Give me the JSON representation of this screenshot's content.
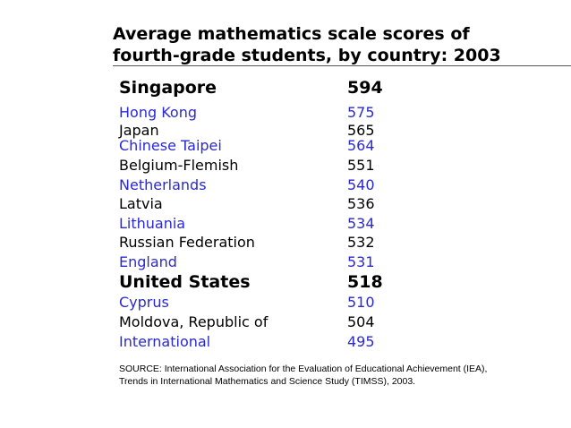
{
  "title": {
    "line1": "Average mathematics scale scores of",
    "line2": "fourth-grade students, by country: 2003"
  },
  "rows": [
    {
      "country": "Singapore",
      "score": "594",
      "style": "bold",
      "color": "#000000"
    },
    {
      "country": "Hong Kong",
      "score": "575",
      "style": "normal",
      "color": "#2a2ad0"
    },
    {
      "country": "Japan",
      "score": "565",
      "style": "normal",
      "color": "#000000"
    },
    {
      "country": "Chinese Taipei",
      "score": "564",
      "style": "normal",
      "color": "#2a2ad0"
    },
    {
      "country": "Belgium-Flemish",
      "score": "551",
      "style": "normal",
      "color": "#000000"
    },
    {
      "country": "Netherlands",
      "score": "540",
      "style": "normal",
      "color": "#2a2ad0"
    },
    {
      "country": "Latvia",
      "score": "536",
      "style": "normal",
      "color": "#000000"
    },
    {
      "country": "Lithuania",
      "score": "534",
      "style": "normal",
      "color": "#2a2ad0"
    },
    {
      "country": "Russian Federation",
      "score": "532",
      "style": "normal",
      "color": "#000000"
    },
    {
      "country": "England",
      "score": "531",
      "style": "normal",
      "color": "#2a2ad0"
    },
    {
      "country": "United States",
      "score": "518",
      "style": "bold",
      "color": "#000000"
    },
    {
      "country": "Cyprus",
      "score": "510",
      "style": "normal",
      "color": "#2a2ad0"
    },
    {
      "country": "Moldova, Republic of",
      "score": "504",
      "style": "normal",
      "color": "#000000"
    },
    {
      "country": "International",
      "score": "495",
      "style": "normal",
      "color": "#2a2ad0"
    }
  ],
  "source": {
    "line1": "SOURCE: International Association for the Evaluation of Educational Achievement (IEA),",
    "line2": "Trends in International Mathematics and Science Study (TIMSS), 2003."
  }
}
